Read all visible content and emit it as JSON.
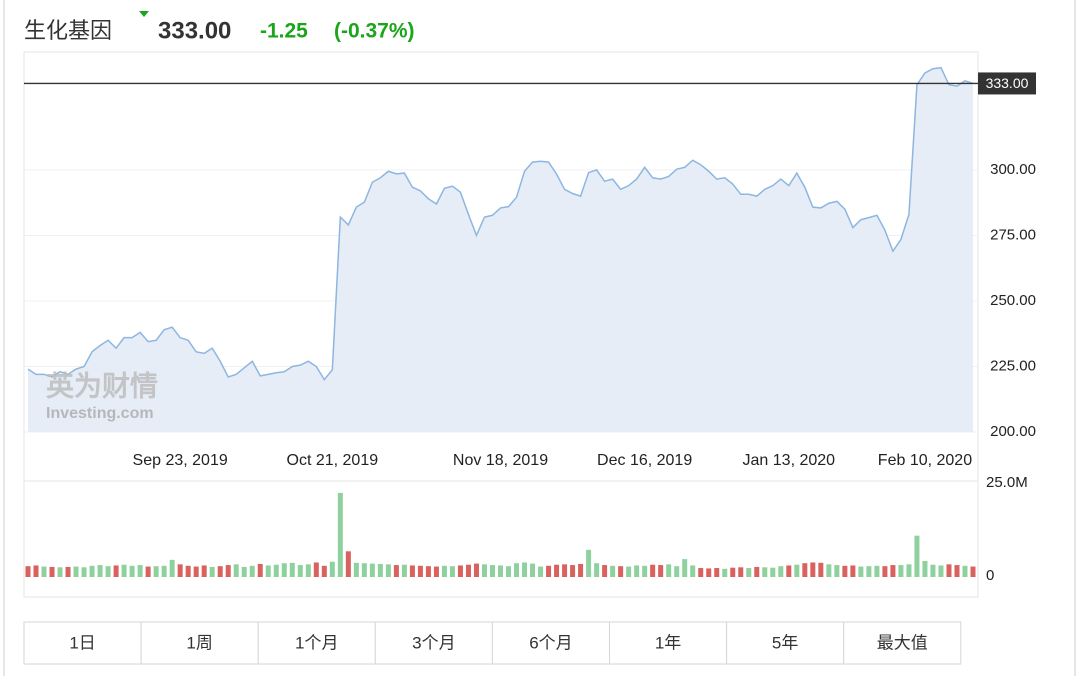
{
  "header": {
    "title": "生化基因",
    "price": "333.00",
    "change": "-1.25",
    "change_pct": "(-0.37%)"
  },
  "chart_data": [
    {
      "type": "area",
      "color": "#8db6e0",
      "fill": "#e6edf7",
      "xlim": [
        0,
        118
      ],
      "ylim": [
        200,
        345
      ],
      "xticks": [
        {
          "value": 19,
          "label": "Sep 23, 2019"
        },
        {
          "value": 38,
          "label": "Oct 21, 2019"
        },
        {
          "value": 59,
          "label": "Nov 18, 2019"
        },
        {
          "value": 77,
          "label": "Dec 16, 2019"
        },
        {
          "value": 95,
          "label": "Jan 13, 2020"
        },
        {
          "value": 112,
          "label": "Feb 10, 2020"
        }
      ],
      "yticks": [
        {
          "value": 200,
          "label": "200.00"
        },
        {
          "value": 225,
          "label": "225.00"
        },
        {
          "value": 250,
          "label": "250.00"
        },
        {
          "value": 275,
          "label": "275.00"
        },
        {
          "value": 300,
          "label": "300.00"
        }
      ],
      "grid": true,
      "last_price_line": {
        "value": 333,
        "label": "333.00"
      },
      "watermark": {
        "cn": "英为财情",
        "en": "Investing.com"
      },
      "values": [
        224,
        222,
        222,
        221,
        223,
        222,
        224,
        225,
        230.6,
        233,
        235,
        232,
        236,
        236,
        238,
        234.5,
        235,
        239,
        240,
        236,
        235,
        230.6,
        230,
        232,
        227,
        221,
        222,
        224.5,
        227,
        221.4,
        222,
        222.6,
        223,
        225,
        225.5,
        227,
        225,
        220,
        223.7,
        282,
        279,
        285.8,
        287.7,
        295.3,
        297,
        299.5,
        298.5,
        298.8,
        293.4,
        292,
        289,
        287,
        293,
        293.8,
        291.5,
        283,
        275,
        282,
        282.7,
        285.5,
        286,
        289.6,
        299.5,
        303,
        303.3,
        303,
        298.4,
        292.6,
        291,
        290,
        299,
        300,
        295.7,
        296.5,
        292.6,
        294,
        296.5,
        301,
        297,
        296.5,
        297.5,
        300.3,
        301,
        303.7,
        302,
        299.5,
        296.5,
        297,
        294.6,
        290.7,
        290.7,
        290,
        292.6,
        294,
        296.5,
        294,
        298.8,
        293.4,
        285.8,
        285.5,
        287.3,
        288,
        285,
        278,
        281,
        281.8,
        282.7,
        277,
        269,
        273.5,
        283,
        332.5,
        337,
        338.6,
        339,
        332.5,
        332,
        334,
        333
      ]
    },
    {
      "type": "bar",
      "up_color": "#8fd19e",
      "down_color": "#d9625f",
      "xlim": [
        0,
        118
      ],
      "ylim": [
        0,
        25
      ],
      "yticks": [
        0,
        {
          "value": 25,
          "label": "25.0M"
        }
      ],
      "values": [
        2.1,
        2.3,
        2.0,
        1.9,
        1.8,
        1.9,
        2.0,
        1.8,
        2.2,
        2.4,
        2.1,
        2.3,
        2.5,
        2.2,
        2.4,
        2.0,
        2.1,
        2.2,
        3.8,
        2.6,
        2.2,
        2.0,
        2.3,
        1.9,
        2.1,
        2.4,
        2.6,
        1.9,
        2.2,
        2.7,
        2.3,
        2.5,
        2.9,
        3.0,
        2.4,
        2.6,
        3.1,
        2.2,
        3.3,
        21.8,
        6.1,
        3.0,
        2.9,
        2.8,
        2.7,
        2.6,
        2.4,
        2.5,
        2.3,
        2.2,
        2.1,
        2.0,
        2.2,
        2.1,
        2.3,
        2.5,
        2.8,
        2.6,
        2.4,
        2.3,
        2.1,
        2.9,
        3.1,
        2.8,
        2.0,
        2.2,
        2.5,
        2.6,
        2.4,
        2.7,
        6.5,
        2.9,
        2.4,
        2.2,
        2.1,
        2.0,
        2.3,
        2.2,
        2.5,
        2.4,
        2.6,
        2.1,
        4.0,
        2.3,
        1.6,
        1.5,
        1.6,
        1.4,
        1.7,
        1.8,
        1.6,
        1.9,
        1.8,
        1.7,
        2.1,
        2.3,
        2.5,
        2.9,
        3.1,
        3.0,
        2.6,
        2.4,
        2.2,
        2.3,
        2.0,
        2.1,
        2.2,
        2.1,
        2.4,
        2.4,
        2.6,
        10.3,
        3.5,
        2.5,
        2.3,
        2.6,
        2.4,
        2.2,
        2.0
      ]
    }
  ],
  "buttons": [
    "1日",
    "1周",
    "1个月",
    "3个月",
    "6个月",
    "1年",
    "5年",
    "最大值"
  ]
}
